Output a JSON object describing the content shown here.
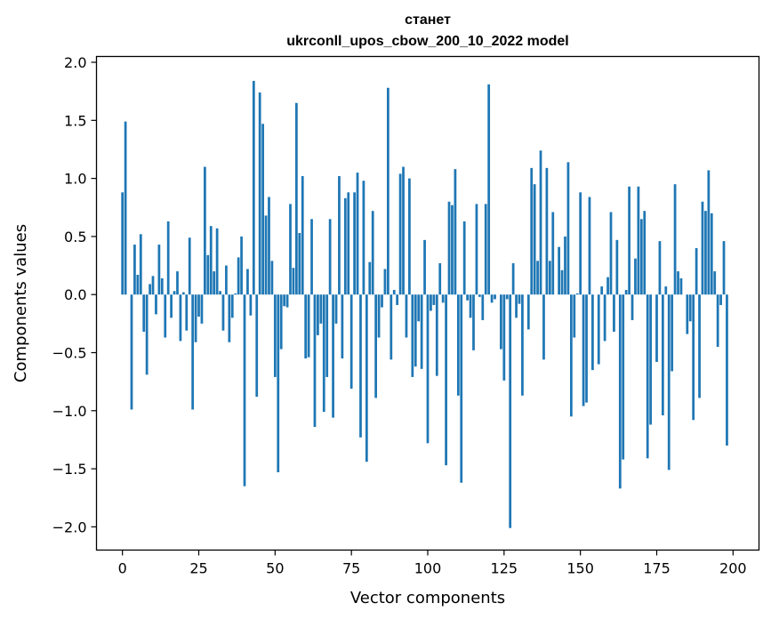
{
  "chart_data": {
    "type": "bar",
    "title": "станет",
    "subtitle": "ukrconll_upos_cbow_200_10_2022 model",
    "xlabel": "Vector components",
    "ylabel": "Components values",
    "xlim": [
      -8.5,
      208.5
    ],
    "ylim": [
      -2.2,
      2.05
    ],
    "xticks": [
      0,
      25,
      50,
      75,
      100,
      125,
      150,
      175,
      200
    ],
    "yticks": [
      -2.0,
      -1.5,
      -1.0,
      -0.5,
      0.0,
      0.5,
      1.0,
      1.5,
      2.0
    ],
    "xtick_labels": [
      "0",
      "25",
      "50",
      "75",
      "100",
      "125",
      "150",
      "175",
      "200"
    ],
    "ytick_labels": [
      "−2.0",
      "−1.5",
      "−1.0",
      "−0.5",
      "0.0",
      "0.5",
      "1.0",
      "1.5",
      "2.0"
    ],
    "grid": false,
    "bar_color": "#1f77b4",
    "values": [
      0.88,
      1.49,
      0.0,
      -0.99,
      0.43,
      0.17,
      0.52,
      -0.32,
      -0.69,
      0.09,
      0.16,
      -0.17,
      0.43,
      0.14,
      -0.37,
      0.63,
      -0.2,
      0.03,
      0.2,
      -0.4,
      0.02,
      -0.31,
      0.49,
      -0.99,
      -0.41,
      -0.19,
      -0.25,
      1.1,
      0.34,
      0.59,
      0.2,
      0.57,
      0.03,
      -0.31,
      0.25,
      -0.41,
      -0.2,
      0.01,
      0.32,
      0.5,
      -1.65,
      0.22,
      -0.18,
      1.84,
      -0.88,
      1.74,
      1.47,
      0.68,
      0.84,
      0.29,
      -0.71,
      -1.53,
      -0.47,
      -0.1,
      -0.11,
      0.78,
      0.23,
      1.65,
      0.53,
      1.02,
      -0.55,
      -0.54,
      0.65,
      -1.14,
      -0.35,
      -0.25,
      -1.01,
      -0.71,
      0.65,
      -1.06,
      -0.25,
      1.02,
      -0.55,
      0.83,
      0.88,
      -0.81,
      0.88,
      1.05,
      -1.23,
      0.98,
      -1.44,
      0.28,
      0.72,
      -0.89,
      -0.37,
      -0.11,
      0.22,
      1.78,
      -0.56,
      0.04,
      -0.09,
      1.04,
      1.1,
      -0.37,
      1.0,
      -0.71,
      -0.62,
      -0.23,
      -0.64,
      0.47,
      -1.28,
      -0.14,
      -0.09,
      -0.7,
      0.27,
      -0.07,
      -1.47,
      0.8,
      0.77,
      1.08,
      -0.87,
      -1.62,
      0.63,
      -0.05,
      -0.2,
      -0.48,
      0.78,
      -0.02,
      -0.22,
      0.78,
      1.81,
      -0.07,
      -0.04,
      0.0,
      -0.47,
      -0.74,
      -0.04,
      -2.01,
      0.27,
      -0.2,
      -0.08,
      -0.87,
      0.0,
      -0.3,
      1.09,
      0.95,
      0.29,
      1.24,
      -0.56,
      1.09,
      0.29,
      0.71,
      0.0,
      0.41,
      0.21,
      0.5,
      1.14,
      -1.05,
      -0.37,
      0.01,
      0.88,
      -0.96,
      -0.93,
      0.84,
      -0.65,
      0.0,
      -0.6,
      0.07,
      -0.4,
      0.15,
      0.71,
      -0.32,
      0.47,
      -1.67,
      -1.42,
      0.04,
      0.93,
      -0.22,
      0.31,
      0.93,
      0.65,
      0.72,
      -1.41,
      -1.12,
      0.0,
      -0.58,
      0.46,
      -1.04,
      0.07,
      -1.51,
      -0.66,
      0.95,
      0.2,
      0.14,
      0.0,
      -0.34,
      -0.23,
      -1.08,
      0.4,
      -0.89,
      0.8,
      0.72,
      1.07,
      0.7,
      0.2,
      -0.45,
      -0.09,
      0.46,
      -1.3
    ]
  }
}
